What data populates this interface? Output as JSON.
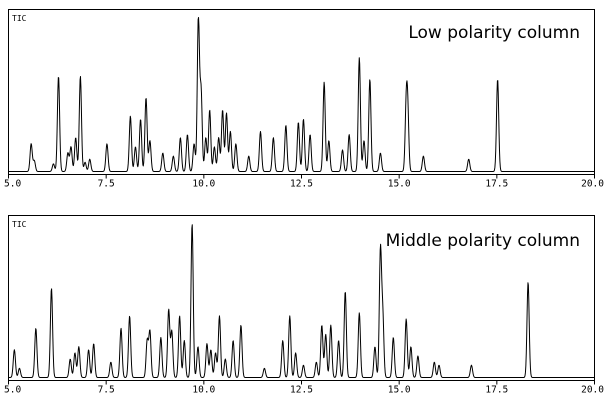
{
  "chart_data": [
    {
      "type": "line",
      "ylabel": "TIC",
      "title": "Low polarity column",
      "xlim": [
        5.0,
        20.0
      ],
      "xticks": [
        "5.0",
        "7.5",
        "10.0",
        "12.5",
        "15.0",
        "17.5",
        "20.0"
      ],
      "grid": false,
      "peaks": [
        {
          "rt": 5.58,
          "h": 0.18
        },
        {
          "rt": 5.66,
          "h": 0.07
        },
        {
          "rt": 6.15,
          "h": 0.05
        },
        {
          "rt": 6.28,
          "h": 0.62
        },
        {
          "rt": 6.52,
          "h": 0.12
        },
        {
          "rt": 6.6,
          "h": 0.16
        },
        {
          "rt": 6.72,
          "h": 0.22
        },
        {
          "rt": 6.84,
          "h": 0.62
        },
        {
          "rt": 6.96,
          "h": 0.06
        },
        {
          "rt": 7.08,
          "h": 0.08
        },
        {
          "rt": 7.52,
          "h": 0.18
        },
        {
          "rt": 8.12,
          "h": 0.36
        },
        {
          "rt": 8.25,
          "h": 0.16
        },
        {
          "rt": 8.38,
          "h": 0.34
        },
        {
          "rt": 8.52,
          "h": 0.48
        },
        {
          "rt": 8.62,
          "h": 0.2
        },
        {
          "rt": 8.95,
          "h": 0.12
        },
        {
          "rt": 9.22,
          "h": 0.1
        },
        {
          "rt": 9.4,
          "h": 0.22
        },
        {
          "rt": 9.58,
          "h": 0.24
        },
        {
          "rt": 9.75,
          "h": 0.18
        },
        {
          "rt": 9.86,
          "h": 1.0
        },
        {
          "rt": 9.93,
          "h": 0.52
        },
        {
          "rt": 10.05,
          "h": 0.22
        },
        {
          "rt": 10.15,
          "h": 0.4
        },
        {
          "rt": 10.27,
          "h": 0.16
        },
        {
          "rt": 10.38,
          "h": 0.22
        },
        {
          "rt": 10.48,
          "h": 0.4
        },
        {
          "rt": 10.58,
          "h": 0.38
        },
        {
          "rt": 10.68,
          "h": 0.26
        },
        {
          "rt": 10.82,
          "h": 0.18
        },
        {
          "rt": 11.15,
          "h": 0.1
        },
        {
          "rt": 11.45,
          "h": 0.26
        },
        {
          "rt": 11.78,
          "h": 0.22
        },
        {
          "rt": 12.1,
          "h": 0.3
        },
        {
          "rt": 12.42,
          "h": 0.32
        },
        {
          "rt": 12.55,
          "h": 0.34
        },
        {
          "rt": 12.72,
          "h": 0.24
        },
        {
          "rt": 13.08,
          "h": 0.58
        },
        {
          "rt": 13.2,
          "h": 0.2
        },
        {
          "rt": 13.55,
          "h": 0.14
        },
        {
          "rt": 13.72,
          "h": 0.24
        },
        {
          "rt": 13.98,
          "h": 0.74
        },
        {
          "rt": 14.1,
          "h": 0.2
        },
        {
          "rt": 14.25,
          "h": 0.6
        },
        {
          "rt": 14.52,
          "h": 0.12
        },
        {
          "rt": 15.18,
          "h": 0.4
        },
        {
          "rt": 15.22,
          "h": 0.36
        },
        {
          "rt": 15.62,
          "h": 0.1
        },
        {
          "rt": 16.78,
          "h": 0.08
        },
        {
          "rt": 17.52,
          "h": 0.6
        }
      ]
    },
    {
      "type": "line",
      "ylabel": "TIC",
      "title": "Middle polarity column",
      "xlim": [
        5.0,
        20.0
      ],
      "xticks": [
        "5.0",
        "7.5",
        "10.0",
        "12.5",
        "15.0",
        "17.5",
        "20.0"
      ],
      "grid": false,
      "peaks": [
        {
          "rt": 5.15,
          "h": 0.18
        },
        {
          "rt": 5.28,
          "h": 0.06
        },
        {
          "rt": 5.7,
          "h": 0.32
        },
        {
          "rt": 6.1,
          "h": 0.58
        },
        {
          "rt": 6.58,
          "h": 0.12
        },
        {
          "rt": 6.7,
          "h": 0.16
        },
        {
          "rt": 6.8,
          "h": 0.2
        },
        {
          "rt": 7.05,
          "h": 0.18
        },
        {
          "rt": 7.18,
          "h": 0.22
        },
        {
          "rt": 7.62,
          "h": 0.1
        },
        {
          "rt": 7.88,
          "h": 0.32
        },
        {
          "rt": 8.1,
          "h": 0.4
        },
        {
          "rt": 8.55,
          "h": 0.24
        },
        {
          "rt": 8.62,
          "h": 0.3
        },
        {
          "rt": 8.9,
          "h": 0.26
        },
        {
          "rt": 9.1,
          "h": 0.44
        },
        {
          "rt": 9.18,
          "h": 0.3
        },
        {
          "rt": 9.38,
          "h": 0.4
        },
        {
          "rt": 9.5,
          "h": 0.24
        },
        {
          "rt": 9.7,
          "h": 1.0
        },
        {
          "rt": 9.85,
          "h": 0.2
        },
        {
          "rt": 10.08,
          "h": 0.22
        },
        {
          "rt": 10.18,
          "h": 0.18
        },
        {
          "rt": 10.3,
          "h": 0.16
        },
        {
          "rt": 10.4,
          "h": 0.4
        },
        {
          "rt": 10.55,
          "h": 0.12
        },
        {
          "rt": 10.75,
          "h": 0.24
        },
        {
          "rt": 10.95,
          "h": 0.34
        },
        {
          "rt": 11.55,
          "h": 0.06
        },
        {
          "rt": 12.02,
          "h": 0.24
        },
        {
          "rt": 12.2,
          "h": 0.4
        },
        {
          "rt": 12.35,
          "h": 0.16
        },
        {
          "rt": 12.55,
          "h": 0.08
        },
        {
          "rt": 12.88,
          "h": 0.1
        },
        {
          "rt": 13.02,
          "h": 0.34
        },
        {
          "rt": 13.12,
          "h": 0.28
        },
        {
          "rt": 13.25,
          "h": 0.34
        },
        {
          "rt": 13.45,
          "h": 0.24
        },
        {
          "rt": 13.62,
          "h": 0.56
        },
        {
          "rt": 13.98,
          "h": 0.42
        },
        {
          "rt": 14.38,
          "h": 0.2
        },
        {
          "rt": 14.52,
          "h": 0.82
        },
        {
          "rt": 14.58,
          "h": 0.4
        },
        {
          "rt": 14.85,
          "h": 0.26
        },
        {
          "rt": 15.18,
          "h": 0.38
        },
        {
          "rt": 15.3,
          "h": 0.2
        },
        {
          "rt": 15.48,
          "h": 0.14
        },
        {
          "rt": 15.9,
          "h": 0.1
        },
        {
          "rt": 16.02,
          "h": 0.08
        },
        {
          "rt": 16.85,
          "h": 0.08
        },
        {
          "rt": 18.3,
          "h": 0.62
        }
      ]
    }
  ]
}
